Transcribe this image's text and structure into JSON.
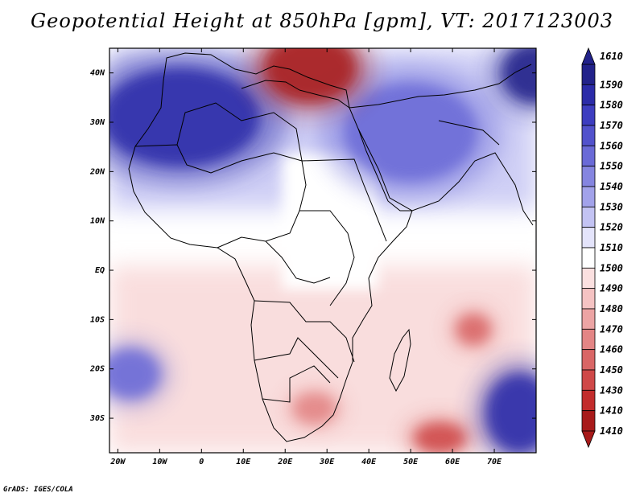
{
  "title": "Geopotential Height at 850hPa [gpm], VT: 2017123003",
  "credit": "GrADS: IGES/COLA",
  "map": {
    "region": "Africa, Middle East and western Indian Ocean",
    "lon_range": [
      -22,
      80
    ],
    "lat_range": [
      -37,
      45
    ],
    "lon_ticks": [
      {
        "value": -20,
        "label": "20W"
      },
      {
        "value": -10,
        "label": "10W"
      },
      {
        "value": 0,
        "label": "0"
      },
      {
        "value": 10,
        "label": "10E"
      },
      {
        "value": 20,
        "label": "20E"
      },
      {
        "value": 30,
        "label": "30E"
      },
      {
        "value": 40,
        "label": "40E"
      },
      {
        "value": 50,
        "label": "50E"
      },
      {
        "value": 60,
        "label": "60E"
      },
      {
        "value": 70,
        "label": "70E"
      }
    ],
    "lat_ticks": [
      {
        "value": 40,
        "label": "40N"
      },
      {
        "value": 30,
        "label": "30N"
      },
      {
        "value": 20,
        "label": "20N"
      },
      {
        "value": 10,
        "label": "10N"
      },
      {
        "value": 0,
        "label": "EQ"
      },
      {
        "value": -10,
        "label": "10S"
      },
      {
        "value": -20,
        "label": "20S"
      },
      {
        "value": -30,
        "label": "30S"
      }
    ],
    "features": [
      {
        "name": "high-north-africa",
        "lon": -5,
        "lat": 31,
        "rx": 19,
        "ry": 10,
        "level": "1590"
      },
      {
        "name": "high-arabia",
        "lon": 50,
        "lat": 28,
        "rx": 16,
        "ry": 10,
        "level": "1560"
      },
      {
        "name": "high-tibet-corner",
        "lon": 80,
        "lat": 40,
        "rx": 8,
        "ry": 6,
        "level": "1610"
      },
      {
        "name": "low-mediterranean",
        "lon": 26,
        "lat": 41,
        "rx": 11,
        "ry": 7,
        "level": "1410"
      },
      {
        "name": "low-southern-africa",
        "lon": 27,
        "lat": -28,
        "rx": 5,
        "ry": 3,
        "level": "1470"
      },
      {
        "name": "low-indian-ocean",
        "lon": 65,
        "lat": -12,
        "rx": 4,
        "ry": 3,
        "level": "1460"
      },
      {
        "name": "low-madagascar-south",
        "lon": 57,
        "lat": -34,
        "rx": 6,
        "ry": 3,
        "level": "1450"
      },
      {
        "name": "high-sw-indian-ocean",
        "lon": 76,
        "lat": -29,
        "rx": 8,
        "ry": 8,
        "level": "1590"
      },
      {
        "name": "high-south-atlantic",
        "lon": -17,
        "lat": -21,
        "rx": 7,
        "ry": 5,
        "level": "1560"
      }
    ]
  },
  "colorbar": {
    "top_label": "1610",
    "bottom_label": "1410",
    "levels": [
      {
        "label": "1610",
        "color": "#22228a"
      },
      {
        "label": "1590",
        "color": "#2b2ba8"
      },
      {
        "label": "1580",
        "color": "#3d3dc0"
      },
      {
        "label": "1570",
        "color": "#5252cc"
      },
      {
        "label": "1560",
        "color": "#6a6ad7"
      },
      {
        "label": "1550",
        "color": "#8585e0"
      },
      {
        "label": "1540",
        "color": "#a2a2ea"
      },
      {
        "label": "1530",
        "color": "#c3c3f3"
      },
      {
        "label": "1520",
        "color": "#e4e4fb"
      },
      {
        "label": "1510",
        "color": "#ffffff"
      },
      {
        "label": "1500",
        "color": "#fbe0e0"
      },
      {
        "label": "1490",
        "color": "#f5c3c3"
      },
      {
        "label": "1480",
        "color": "#eca4a4"
      },
      {
        "label": "1470",
        "color": "#e38585"
      },
      {
        "label": "1460",
        "color": "#d96666"
      },
      {
        "label": "1450",
        "color": "#cf4848"
      },
      {
        "label": "1430",
        "color": "#c22c2c"
      },
      {
        "label": "1410",
        "color": "#a81a1a"
      }
    ]
  }
}
